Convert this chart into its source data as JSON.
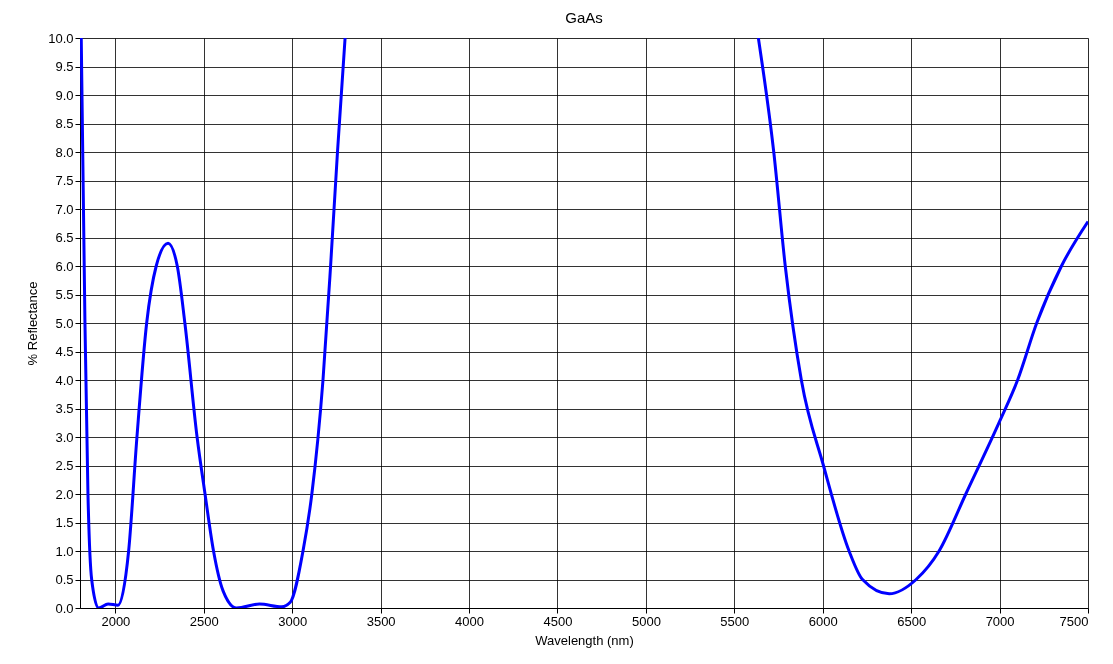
{
  "chart_data": {
    "type": "line",
    "title": "GaAs",
    "xlabel": "Wavelength (nm)",
    "ylabel": "% Reflectance",
    "x": [
      1807,
      1828,
      1845,
      1866,
      1905,
      1959,
      2015,
      2075,
      2122,
      2177,
      2231,
      2298,
      2350,
      2393,
      2462,
      2507,
      2555,
      2609,
      2685,
      2815,
      2941,
      2989,
      3061,
      3111,
      3174,
      3217,
      3256,
      3299,
      3460,
      5636,
      5723,
      5788,
      5879,
      6004,
      6149,
      6225,
      6376,
      6528,
      6658,
      6809,
      7004,
      7102,
      7210,
      7350,
      7500
    ],
    "series": [
      {
        "color": "#0000ff",
        "values": [
          10,
          5,
          2,
          0.5,
          0,
          0.07,
          0.05,
          1,
          3,
          5,
          6,
          6.4,
          6,
          5,
          3,
          2,
          1,
          0.3,
          0,
          0.07,
          0.02,
          0.1,
          1,
          2,
          4,
          6,
          8,
          10,
          null,
          10,
          8,
          6,
          4,
          2.5,
          1,
          0.5,
          0.25,
          0.5,
          1,
          2,
          3.3,
          4,
          5,
          6,
          6.78
        ]
      }
    ],
    "xlim": [
      1800,
      7500
    ],
    "xticks": [
      2000,
      2500,
      3000,
      3500,
      4000,
      4500,
      5000,
      5500,
      6000,
      6500,
      7000,
      7500
    ],
    "ylim": [
      0,
      10
    ],
    "yticks": [
      {
        "value": 0,
        "label": "0.0"
      },
      {
        "value": 0.5,
        "label": "0.5"
      },
      {
        "value": 1,
        "label": "1.0"
      },
      {
        "value": 1.5,
        "label": "1.5"
      },
      {
        "value": 2,
        "label": "2.0"
      },
      {
        "value": 2.5,
        "label": "2.5"
      },
      {
        "value": 3,
        "label": "3.0"
      },
      {
        "value": 3.5,
        "label": "3.5"
      },
      {
        "value": 4,
        "label": "4.0"
      },
      {
        "value": 4.5,
        "label": "4.5"
      },
      {
        "value": 5,
        "label": "5.0"
      },
      {
        "value": 5.5,
        "label": "5.5"
      },
      {
        "value": 6,
        "label": "6.0"
      },
      {
        "value": 6.5,
        "label": "6.5"
      },
      {
        "value": 7,
        "label": "7.0"
      },
      {
        "value": 7.5,
        "label": "7.5"
      },
      {
        "value": 8,
        "label": "8.0"
      },
      {
        "value": 8.5,
        "label": "8.5"
      },
      {
        "value": 9,
        "label": "9.0"
      },
      {
        "value": 9.5,
        "label": "9.5"
      },
      {
        "value": 10,
        "label": "10.0"
      }
    ],
    "grid": true,
    "marker": "none",
    "line_style": "solid"
  }
}
